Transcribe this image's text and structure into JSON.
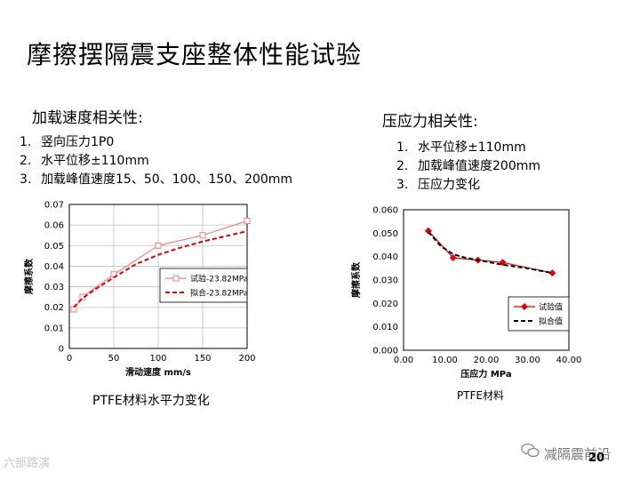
{
  "title": "摩擦摆隔震支座整体性能试验",
  "left_section": {
    "heading": "加载速度相关性:",
    "items": [
      {
        "num": "1.",
        "text": "竖向压力1P0"
      },
      {
        "num": "2.",
        "text": "水平位移±110mm"
      },
      {
        "num": "3.",
        "text": "加载峰值速度15、50、100、150、200mm"
      }
    ],
    "caption": "PTFE材料水平力变化"
  },
  "right_section": {
    "heading": "压应力相关性:",
    "items": [
      {
        "num": "1.",
        "text": "水平位移±110mm"
      },
      {
        "num": "2.",
        "text": "加载峰值速度200mm"
      },
      {
        "num": "3.",
        "text": "压应力变化"
      }
    ],
    "caption": "PTFE材料"
  },
  "chart_data": [
    {
      "type": "line",
      "xlabel": "滑动速度 mm/s",
      "ylabel": "摩擦系数",
      "xlim": [
        0,
        200
      ],
      "ylim": [
        0,
        0.07
      ],
      "xticks": [
        "0",
        "50",
        "100",
        "150",
        "200"
      ],
      "yticks": [
        "0",
        "0.01",
        "0.02",
        "0.03",
        "0.04",
        "0.05",
        "0.06",
        "0.07"
      ],
      "legend_position": "middle-right",
      "series": [
        {
          "name": "试验-23.82MPa",
          "color": "#f08080",
          "style": "solid-marker",
          "x": [
            5,
            15,
            50,
            100,
            150,
            200
          ],
          "y": [
            0.019,
            0.025,
            0.036,
            0.05,
            0.055,
            0.062
          ]
        },
        {
          "name": "拟合-23.82MPa",
          "color": "#e00000",
          "style": "dashed",
          "x": [
            5,
            15,
            30,
            50,
            75,
            100,
            125,
            150,
            175,
            200
          ],
          "y": [
            0.02,
            0.0245,
            0.029,
            0.0345,
            0.041,
            0.0455,
            0.049,
            0.052,
            0.0545,
            0.057
          ]
        }
      ]
    },
    {
      "type": "line",
      "xlabel": "压应力 MPa",
      "ylabel": "摩擦系数",
      "xlim": [
        0,
        40
      ],
      "ylim": [
        0,
        0.06
      ],
      "xticks": [
        "0.00",
        "10.00",
        "20.00",
        "30.00",
        "40.00"
      ],
      "yticks": [
        "0.000",
        "0.010",
        "0.020",
        "0.030",
        "0.040",
        "0.050",
        "0.060"
      ],
      "legend_position": "bottom-right",
      "series": [
        {
          "name": "试验值",
          "color": "#e00000",
          "style": "solid-marker",
          "x": [
            6,
            12,
            18,
            24,
            36
          ],
          "y": [
            0.051,
            0.0395,
            0.0385,
            0.0375,
            0.033
          ]
        },
        {
          "name": "拟合值",
          "color": "#000000",
          "style": "dashed",
          "x": [
            6,
            9,
            12,
            15,
            18,
            24,
            30,
            36
          ],
          "y": [
            0.0505,
            0.0445,
            0.041,
            0.0395,
            0.0385,
            0.0365,
            0.035,
            0.033
          ]
        }
      ]
    }
  ],
  "footer": {
    "left_watermark": "六部路演",
    "right_brand": "减隔震前沿",
    "page_number": "20"
  }
}
